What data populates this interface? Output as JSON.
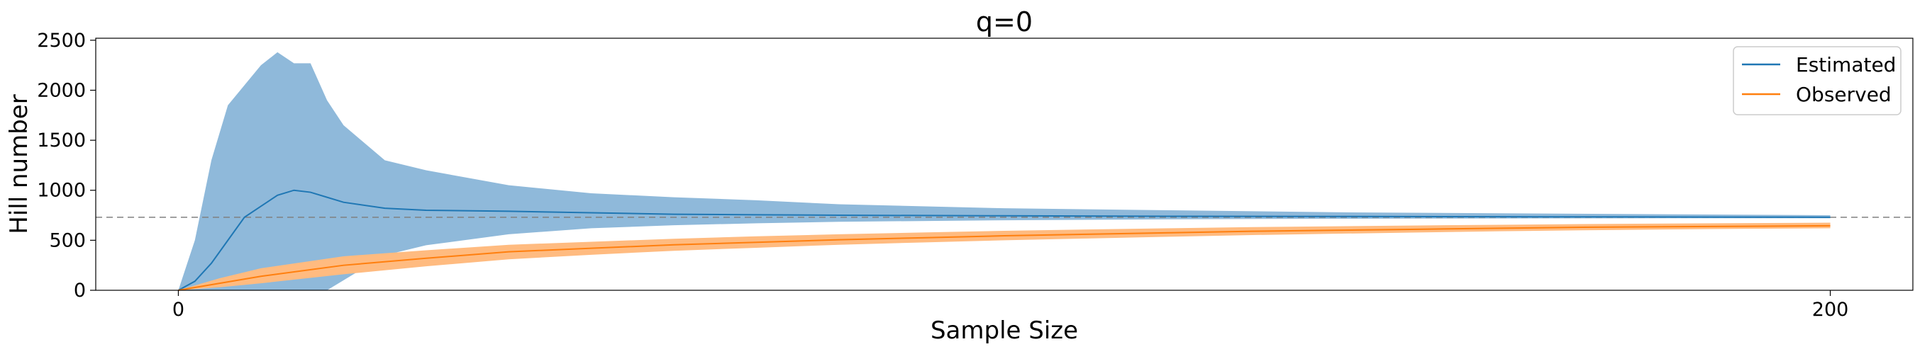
{
  "chart_data": {
    "type": "line",
    "title": "q=0",
    "xlabel": "Sample Size",
    "ylabel": "Hill number",
    "xlim": [
      -10,
      210
    ],
    "ylim": [
      0,
      2520
    ],
    "x_ticks": [
      0,
      200
    ],
    "x_tick_labels": [
      "0",
      "200"
    ],
    "y_ticks": [
      0,
      500,
      1000,
      1500,
      2000,
      2500
    ],
    "y_tick_labels": [
      "0",
      "500",
      "1000",
      "1500",
      "2000",
      "2500"
    ],
    "grid": false,
    "legend_position": "top-right",
    "reference_line": {
      "y": 730,
      "style": "dashed",
      "color": "#808080"
    },
    "series": [
      {
        "name": "Estimated",
        "color": "#1f77b4",
        "band_color": "#8fb9da",
        "x": [
          0,
          2,
          4,
          6,
          8,
          10,
          12,
          14,
          16,
          18,
          20,
          25,
          30,
          40,
          50,
          60,
          70,
          80,
          100,
          120,
          140,
          160,
          180,
          200
        ],
        "y": [
          0,
          90,
          270,
          500,
          730,
          840,
          950,
          1000,
          980,
          930,
          880,
          820,
          800,
          790,
          775,
          760,
          755,
          750,
          745,
          740,
          738,
          735,
          733,
          730
        ],
        "lower": [
          0,
          0,
          0,
          0,
          0,
          0,
          0,
          0,
          0,
          0,
          100,
          350,
          450,
          560,
          620,
          650,
          670,
          685,
          700,
          710,
          715,
          718,
          720,
          720
        ],
        "upper": [
          0,
          500,
          1300,
          1850,
          2050,
          2250,
          2380,
          2270,
          2270,
          1900,
          1650,
          1300,
          1200,
          1050,
          970,
          930,
          900,
          860,
          820,
          800,
          780,
          770,
          760,
          750
        ]
      },
      {
        "name": "Observed",
        "color": "#ff7f0e",
        "band_color": "#ffbb80",
        "x": [
          0,
          5,
          10,
          20,
          30,
          40,
          50,
          60,
          70,
          80,
          90,
          100,
          110,
          120,
          130,
          140,
          150,
          160,
          170,
          180,
          190,
          200
        ],
        "y": [
          0,
          70,
          140,
          250,
          320,
          385,
          420,
          455,
          480,
          505,
          525,
          545,
          560,
          575,
          590,
          600,
          610,
          620,
          630,
          635,
          640,
          645
        ],
        "lower": [
          0,
          30,
          70,
          160,
          240,
          310,
          355,
          395,
          425,
          455,
          478,
          500,
          518,
          535,
          552,
          565,
          578,
          590,
          600,
          608,
          615,
          620
        ],
        "upper": [
          0,
          120,
          220,
          340,
          400,
          455,
          485,
          515,
          540,
          560,
          578,
          595,
          608,
          620,
          632,
          640,
          648,
          655,
          662,
          667,
          672,
          676
        ]
      }
    ]
  }
}
